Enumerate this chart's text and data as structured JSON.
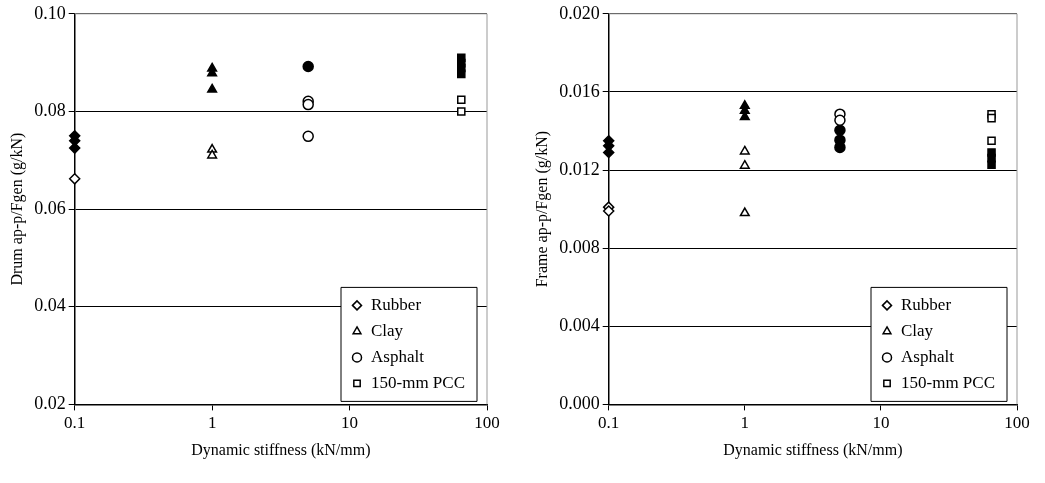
{
  "chart_data": [
    {
      "type": "scatter",
      "xlabel": "Dynamic stiffness (kN/mm)",
      "ylabel": "Drum ap-p/Fgen (g/kN)",
      "log": "x",
      "grid": "y",
      "legend": "bottom right",
      "xlim": [
        0.1,
        100
      ],
      "xticks": [
        0.1,
        1,
        10,
        100
      ],
      "ylim": [
        0.02,
        0.1
      ],
      "yticks": [
        {
          "value": 0.02,
          "label": "0.02"
        },
        {
          "value": 0.04,
          "label": "0.04"
        },
        {
          "value": 0.06,
          "label": "0.06"
        },
        {
          "value": 0.08,
          "label": "0.08"
        },
        {
          "value": 0.1,
          "label": "0.10"
        }
      ],
      "series": [
        {
          "name": "Rubber",
          "color": "#000000",
          "marker": "diamond",
          "x": [
            0.1
          ],
          "values": [
            0.0662
          ]
        },
        {
          "name": "Clay",
          "color": "#000000",
          "marker": "triangle",
          "x": [
            1,
            1
          ],
          "values": [
            0.0722,
            0.071
          ]
        },
        {
          "name": "Asphalt",
          "color": "#000000",
          "marker": "circle",
          "x": [
            5,
            5,
            5
          ],
          "values": [
            0.0821,
            0.0814,
            0.0749
          ]
        },
        {
          "name": "150-mm PCC",
          "color": "#000000",
          "marker": "square",
          "x": [
            65,
            65
          ],
          "values": [
            0.0824,
            0.08
          ]
        },
        {
          "color": "#000000",
          "marker": "diamond",
          "x": [
            0.1,
            0.1,
            0.1
          ],
          "values": [
            0.075,
            0.074,
            0.0725
          ]
        },
        {
          "color": "#000000",
          "marker": "triangle",
          "x": [
            1,
            1,
            1
          ],
          "values": [
            0.0888,
            0.0878,
            0.0845
          ]
        },
        {
          "color": "#000000",
          "marker": "circle",
          "x": [
            5
          ],
          "values": [
            0.0892
          ]
        },
        {
          "color": "#000000",
          "marker": "square",
          "x": [
            65,
            65,
            65,
            65
          ],
          "values": [
            0.091,
            0.0899,
            0.0889,
            0.0877
          ]
        }
      ]
    },
    {
      "type": "scatter",
      "xlabel": "Dynamic stiffness (kN/mm)",
      "ylabel": "Frame ap-p/Fgen (g/kN)",
      "log": "x",
      "grid": "y",
      "legend": "bottom right",
      "xlim": [
        0.1,
        100
      ],
      "xticks": [
        0.1,
        1,
        10,
        100
      ],
      "ylim": [
        0,
        0.02
      ],
      "yticks": [
        {
          "value": 0,
          "label": "0.000"
        },
        {
          "value": 0.004,
          "label": "0.004"
        },
        {
          "value": 0.008,
          "label": "0.008"
        },
        {
          "value": 0.012,
          "label": "0.012"
        },
        {
          "value": 0.016,
          "label": "0.016"
        },
        {
          "value": 0.02,
          "label": "0.020"
        }
      ],
      "series": [
        {
          "name": "Rubber",
          "color": "#000000",
          "marker": "diamond",
          "x": [
            0.1,
            0.1
          ],
          "values": [
            0.0101,
            0.0099
          ]
        },
        {
          "name": "Clay",
          "color": "#000000",
          "marker": "triangle",
          "x": [
            1,
            1,
            1
          ],
          "values": [
            0.01295,
            0.01222,
            0.0098
          ]
        },
        {
          "name": "Asphalt",
          "color": "#000000",
          "marker": "circle",
          "x": [
            5,
            5
          ],
          "values": [
            0.01486,
            0.01455
          ]
        },
        {
          "name": "150-mm PCC",
          "color": "#000000",
          "marker": "square",
          "x": [
            65,
            65,
            65
          ],
          "values": [
            0.01486,
            0.01466,
            0.0135
          ]
        },
        {
          "color": "#000000",
          "marker": "diamond",
          "x": [
            0.1,
            0.1,
            0.1
          ],
          "values": [
            0.0135,
            0.01324,
            0.0129
          ]
        },
        {
          "color": "#000000",
          "marker": "triangle",
          "x": [
            1,
            1,
            1
          ],
          "values": [
            0.01529,
            0.01503,
            0.01472
          ]
        },
        {
          "color": "#000000",
          "marker": "circle",
          "x": [
            5,
            5,
            5
          ],
          "values": [
            0.01404,
            0.01353,
            0.01316
          ]
        },
        {
          "color": "#000000",
          "marker": "square",
          "x": [
            65,
            65,
            65
          ],
          "values": [
            0.0129,
            0.01261,
            0.01227
          ]
        }
      ]
    }
  ]
}
